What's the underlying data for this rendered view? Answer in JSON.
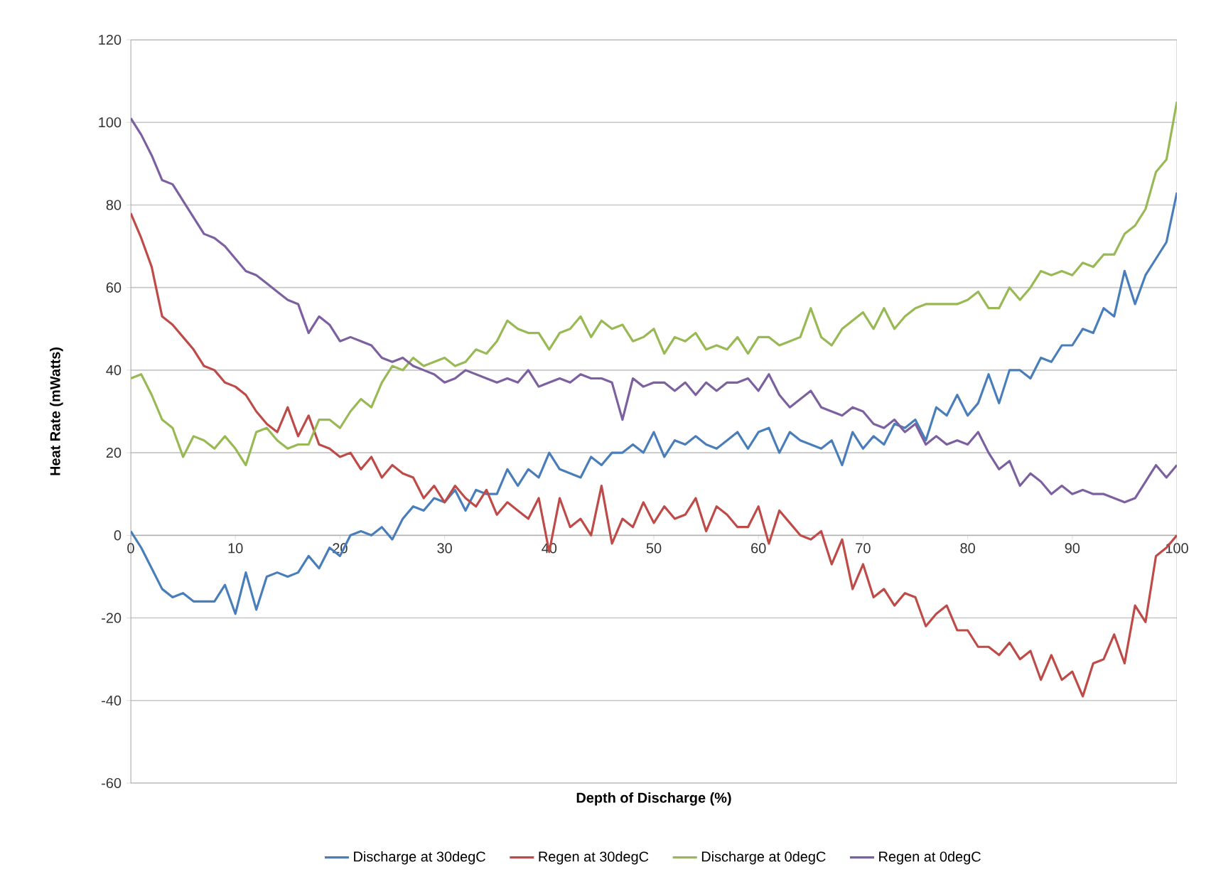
{
  "chart_data": {
    "type": "line",
    "xlabel": "Depth of Discharge (%)",
    "ylabel": "Heat Rate (mWatts)",
    "x": [
      0,
      1,
      2,
      3,
      4,
      5,
      6,
      7,
      8,
      9,
      10,
      11,
      12,
      13,
      14,
      15,
      16,
      17,
      18,
      19,
      20,
      21,
      22,
      23,
      24,
      25,
      26,
      27,
      28,
      29,
      30,
      31,
      32,
      33,
      34,
      35,
      36,
      37,
      38,
      39,
      40,
      41,
      42,
      43,
      44,
      45,
      46,
      47,
      48,
      49,
      50,
      51,
      52,
      53,
      54,
      55,
      56,
      57,
      58,
      59,
      60,
      61,
      62,
      63,
      64,
      65,
      66,
      67,
      68,
      69,
      70,
      71,
      72,
      73,
      74,
      75,
      76,
      77,
      78,
      79,
      80,
      81,
      82,
      83,
      84,
      85,
      86,
      87,
      88,
      89,
      90,
      91,
      92,
      93,
      94,
      95,
      96,
      97,
      98,
      99,
      100
    ],
    "series": [
      {
        "name": "Discharge at 30degC",
        "color": "#4a7ebb",
        "values": [
          1,
          -3,
          -8,
          -13,
          -15,
          -14,
          -16,
          -16,
          -16,
          -12,
          -19,
          -9,
          -18,
          -10,
          -9,
          -10,
          -9,
          -5,
          -8,
          -3,
          -5,
          0,
          1,
          0,
          2,
          -1,
          4,
          7,
          6,
          9,
          8,
          11,
          6,
          11,
          10,
          10,
          16,
          12,
          16,
          14,
          20,
          16,
          15,
          14,
          19,
          17,
          20,
          20,
          22,
          20,
          25,
          19,
          23,
          22,
          24,
          22,
          21,
          23,
          25,
          21,
          25,
          26,
          20,
          25,
          23,
          22,
          21,
          23,
          17,
          25,
          21,
          24,
          22,
          27,
          26,
          28,
          23,
          31,
          29,
          34,
          29,
          32,
          39,
          32,
          40,
          40,
          38,
          43,
          42,
          46,
          46,
          50,
          49,
          55,
          53,
          64,
          56,
          63,
          67,
          71,
          83
        ]
      },
      {
        "name": "Regen at 30degC",
        "color": "#be4b48",
        "values": [
          78,
          72,
          65,
          53,
          51,
          48,
          45,
          41,
          40,
          37,
          36,
          34,
          30,
          27,
          25,
          31,
          24,
          29,
          22,
          21,
          19,
          20,
          16,
          19,
          14,
          17,
          15,
          14,
          9,
          12,
          8,
          12,
          9,
          7,
          11,
          5,
          8,
          6,
          4,
          9,
          -4,
          9,
          2,
          4,
          0,
          12,
          -2,
          4,
          2,
          8,
          3,
          7,
          4,
          5,
          9,
          1,
          7,
          5,
          2,
          2,
          7,
          -2,
          6,
          3,
          0,
          -1,
          1,
          -7,
          -1,
          -13,
          -7,
          -15,
          -13,
          -17,
          -14,
          -15,
          -22,
          -19,
          -17,
          -23,
          -23,
          -27,
          -27,
          -29,
          -26,
          -30,
          -28,
          -35,
          -29,
          -35,
          -33,
          -39,
          -31,
          -30,
          -24,
          -31,
          -17,
          -21,
          -5,
          -3,
          0
        ]
      },
      {
        "name": "Discharge at 0degC",
        "color": "#98b954",
        "values": [
          38,
          39,
          34,
          28,
          26,
          19,
          24,
          23,
          21,
          24,
          21,
          17,
          25,
          26,
          23,
          21,
          22,
          22,
          28,
          28,
          26,
          30,
          33,
          31,
          37,
          41,
          40,
          43,
          41,
          42,
          43,
          41,
          42,
          45,
          44,
          47,
          52,
          50,
          49,
          49,
          45,
          49,
          50,
          53,
          48,
          52,
          50,
          51,
          47,
          48,
          50,
          44,
          48,
          47,
          49,
          45,
          46,
          45,
          48,
          44,
          48,
          48,
          46,
          47,
          48,
          55,
          48,
          46,
          50,
          52,
          54,
          50,
          55,
          50,
          53,
          55,
          56,
          56,
          56,
          56,
          57,
          59,
          55,
          55,
          60,
          57,
          60,
          64,
          63,
          64,
          63,
          66,
          65,
          68,
          68,
          73,
          75,
          79,
          88,
          91,
          105
        ]
      },
      {
        "name": "Regen at 0degC",
        "color": "#7d60a0",
        "values": [
          101,
          97,
          92,
          86,
          85,
          81,
          77,
          73,
          72,
          70,
          67,
          64,
          63,
          61,
          59,
          57,
          56,
          49,
          53,
          51,
          47,
          48,
          47,
          46,
          43,
          42,
          43,
          41,
          40,
          39,
          37,
          38,
          40,
          39,
          38,
          37,
          38,
          37,
          40,
          36,
          37,
          38,
          37,
          39,
          38,
          38,
          37,
          28,
          38,
          36,
          37,
          37,
          35,
          37,
          34,
          37,
          35,
          37,
          37,
          38,
          35,
          39,
          34,
          31,
          33,
          35,
          31,
          30,
          29,
          31,
          30,
          27,
          26,
          28,
          25,
          27,
          22,
          24,
          22,
          23,
          22,
          25,
          20,
          16,
          18,
          12,
          15,
          13,
          10,
          12,
          10,
          11,
          10,
          10,
          9,
          8,
          9,
          13,
          17,
          14,
          17
        ]
      }
    ],
    "xlim": [
      0,
      100
    ],
    "ylim": [
      -60,
      120
    ],
    "xticks": [
      0,
      10,
      20,
      30,
      40,
      50,
      60,
      70,
      80,
      90,
      100
    ],
    "yticks": [
      -60,
      -40,
      -20,
      0,
      20,
      40,
      60,
      80,
      100,
      120
    ],
    "grid": "y",
    "legend": "bottom",
    "line_style": "solid"
  }
}
